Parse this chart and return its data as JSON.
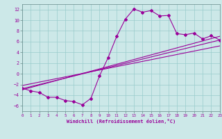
{
  "x_data": [
    0,
    1,
    2,
    3,
    4,
    5,
    6,
    7,
    8,
    9,
    10,
    11,
    12,
    13,
    14,
    15,
    16,
    17,
    18,
    19,
    20,
    21,
    22,
    23
  ],
  "y_jagged": [
    -2.7,
    -3.2,
    -3.5,
    -4.4,
    -4.4,
    -5.0,
    -5.2,
    -5.8,
    -4.6,
    -0.4,
    3.0,
    7.0,
    10.2,
    12.1,
    11.5,
    11.8,
    10.8,
    10.9,
    7.5,
    7.3,
    7.6,
    6.5,
    7.1,
    6.3
  ],
  "reg_line1": [
    -3.0,
    7.0
  ],
  "reg_line2": [
    -2.8,
    6.3
  ],
  "reg_line3": [
    -2.2,
    5.2
  ],
  "bg_color": "#cce8e8",
  "grid_color": "#99cccc",
  "line_color": "#990099",
  "xlabel": "Windchill (Refroidissement éolien,°C)",
  "ylim": [
    -7,
    13
  ],
  "xlim": [
    0,
    23
  ],
  "yticks": [
    -6,
    -4,
    -2,
    0,
    2,
    4,
    6,
    8,
    10,
    12
  ],
  "xticks": [
    0,
    1,
    2,
    3,
    4,
    5,
    6,
    7,
    8,
    9,
    10,
    11,
    12,
    13,
    14,
    15,
    16,
    17,
    18,
    19,
    20,
    21,
    22,
    23
  ]
}
